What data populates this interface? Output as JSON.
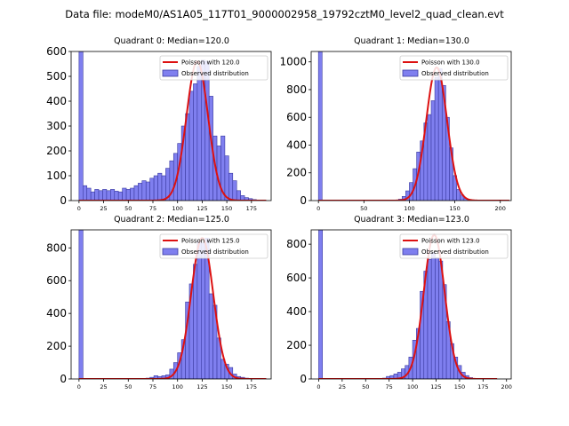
{
  "suptitle": "Data file: modeM0/AS1A05_117T01_9000002958_19792cztM0_level2_quad_clean.evt",
  "colors": {
    "bar_fill": "#7f7fef",
    "bar_edge": "#3a3aa0",
    "poisson": "#dd1111",
    "axis": "#000000"
  },
  "chart_data": [
    {
      "type": "bar",
      "title": "Quadrant 0: Median=120.0",
      "legend": [
        "Poisson with 120.0",
        "Observed distribution"
      ],
      "legend_position": "top-right",
      "xlim": [
        -8,
        195
      ],
      "ylim": [
        0,
        600
      ],
      "xticks": [
        0,
        25,
        50,
        75,
        100,
        125,
        150,
        175
      ],
      "yticks": [
        0,
        100,
        200,
        300,
        400,
        500,
        600
      ],
      "bin_width": 4.0,
      "bins": [
        [
          0,
          600
        ],
        [
          4,
          60
        ],
        [
          8,
          50
        ],
        [
          12,
          35
        ],
        [
          16,
          45
        ],
        [
          20,
          40
        ],
        [
          24,
          45
        ],
        [
          28,
          40
        ],
        [
          32,
          45
        ],
        [
          36,
          38
        ],
        [
          40,
          35
        ],
        [
          44,
          50
        ],
        [
          48,
          45
        ],
        [
          52,
          50
        ],
        [
          56,
          60
        ],
        [
          60,
          70
        ],
        [
          64,
          80
        ],
        [
          68,
          75
        ],
        [
          72,
          90
        ],
        [
          76,
          100
        ],
        [
          80,
          110
        ],
        [
          84,
          100
        ],
        [
          88,
          130
        ],
        [
          92,
          160
        ],
        [
          96,
          190
        ],
        [
          100,
          230
        ],
        [
          104,
          300
        ],
        [
          108,
          350
        ],
        [
          112,
          440
        ],
        [
          116,
          470
        ],
        [
          120,
          540
        ],
        [
          124,
          565
        ],
        [
          128,
          560
        ],
        [
          132,
          420
        ],
        [
          136,
          260
        ],
        [
          140,
          220
        ],
        [
          144,
          260
        ],
        [
          148,
          180
        ],
        [
          152,
          110
        ],
        [
          156,
          80
        ],
        [
          160,
          40
        ],
        [
          164,
          20
        ],
        [
          168,
          12
        ],
        [
          172,
          8
        ],
        [
          176,
          4
        ],
        [
          180,
          2
        ]
      ],
      "poisson_mean": 120.0,
      "poisson_peak": 560,
      "poisson_range": [
        0,
        190
      ]
    },
    {
      "type": "bar",
      "title": "Quadrant 1: Median=130.0",
      "legend": [
        "Poisson with 130.0",
        "Observed distribution"
      ],
      "legend_position": "top-right",
      "xlim": [
        -8,
        212
      ],
      "ylim": [
        0,
        1075
      ],
      "xticks": [
        0,
        50,
        100,
        150,
        200
      ],
      "yticks": [
        0,
        200,
        400,
        600,
        800,
        1000
      ],
      "bin_width": 4.0,
      "bins": [
        [
          0,
          1075
        ],
        [
          84,
          2
        ],
        [
          88,
          10
        ],
        [
          92,
          30
        ],
        [
          96,
          70
        ],
        [
          100,
          130
        ],
        [
          104,
          230
        ],
        [
          108,
          350
        ],
        [
          112,
          430
        ],
        [
          116,
          560
        ],
        [
          120,
          620
        ],
        [
          124,
          720
        ],
        [
          128,
          890
        ],
        [
          132,
          950
        ],
        [
          136,
          830
        ],
        [
          140,
          600
        ],
        [
          144,
          380
        ],
        [
          148,
          180
        ],
        [
          152,
          80
        ],
        [
          156,
          40
        ],
        [
          160,
          15
        ],
        [
          164,
          5
        ],
        [
          168,
          2
        ]
      ],
      "poisson_mean": 130.0,
      "poisson_peak": 960,
      "poisson_range": [
        0,
        210
      ]
    },
    {
      "type": "bar",
      "title": "Quadrant 2: Median=125.0",
      "legend": [
        "Poisson with 125.0",
        "Observed distribution"
      ],
      "legend_position": "top-right",
      "xlim": [
        -8,
        195
      ],
      "ylim": [
        0,
        910
      ],
      "xticks": [
        0,
        25,
        50,
        75,
        100,
        125,
        150,
        175
      ],
      "yticks": [
        0,
        200,
        400,
        600,
        800
      ],
      "bin_width": 4.0,
      "bins": [
        [
          0,
          910
        ],
        [
          64,
          2
        ],
        [
          68,
          5
        ],
        [
          72,
          10
        ],
        [
          76,
          20
        ],
        [
          80,
          15
        ],
        [
          84,
          20
        ],
        [
          88,
          25
        ],
        [
          92,
          60
        ],
        [
          96,
          100
        ],
        [
          100,
          160
        ],
        [
          104,
          240
        ],
        [
          108,
          470
        ],
        [
          112,
          580
        ],
        [
          116,
          700
        ],
        [
          120,
          840
        ],
        [
          124,
          830
        ],
        [
          128,
          860
        ],
        [
          132,
          520
        ],
        [
          136,
          450
        ],
        [
          140,
          250
        ],
        [
          144,
          120
        ],
        [
          148,
          90
        ],
        [
          152,
          70
        ],
        [
          156,
          30
        ],
        [
          160,
          15
        ],
        [
          164,
          10
        ],
        [
          168,
          5
        ],
        [
          172,
          2
        ]
      ],
      "poisson_mean": 125.0,
      "poisson_peak": 860,
      "poisson_range": [
        0,
        190
      ]
    },
    {
      "type": "bar",
      "title": "Quadrant 3: Median=123.0",
      "legend": [
        "Poisson with 123.0",
        "Observed distribution"
      ],
      "legend_position": "top-right",
      "xlim": [
        -8,
        205
      ],
      "ylim": [
        0,
        885
      ],
      "xticks": [
        0,
        25,
        50,
        75,
        100,
        125,
        150,
        175,
        200
      ],
      "yticks": [
        0,
        200,
        400,
        600,
        800
      ],
      "bin_width": 4.0,
      "bins": [
        [
          0,
          885
        ],
        [
          64,
          2
        ],
        [
          68,
          5
        ],
        [
          72,
          15
        ],
        [
          76,
          20
        ],
        [
          80,
          30
        ],
        [
          84,
          40
        ],
        [
          88,
          60
        ],
        [
          92,
          80
        ],
        [
          96,
          130
        ],
        [
          100,
          230
        ],
        [
          104,
          300
        ],
        [
          108,
          520
        ],
        [
          112,
          640
        ],
        [
          116,
          710
        ],
        [
          120,
          750
        ],
        [
          124,
          720
        ],
        [
          128,
          700
        ],
        [
          132,
          560
        ],
        [
          136,
          340
        ],
        [
          140,
          210
        ],
        [
          144,
          130
        ],
        [
          148,
          80
        ],
        [
          152,
          40
        ],
        [
          156,
          20
        ],
        [
          160,
          8
        ],
        [
          164,
          3
        ]
      ],
      "poisson_mean": 123.0,
      "poisson_peak": 855,
      "poisson_range": [
        0,
        190
      ]
    }
  ]
}
